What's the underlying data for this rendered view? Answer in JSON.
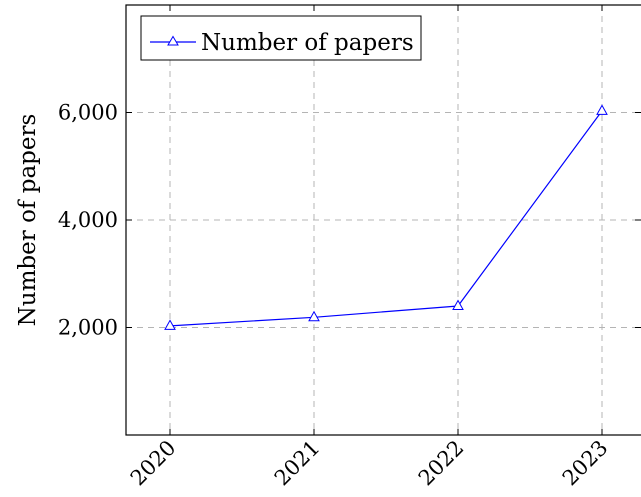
{
  "chart_data": {
    "type": "line",
    "ylabel": "Number of papers",
    "x": [
      "2020",
      "2021",
      "2022",
      "2023"
    ],
    "x_tick_labels": [
      "2020",
      "2021",
      "2022",
      "2023"
    ],
    "y_tick_values": [
      2000,
      4000,
      6000
    ],
    "y_tick_labels": [
      "2,000",
      "4,000",
      "6,000"
    ],
    "ylim": [
      0,
      8000
    ],
    "grid": true,
    "legend_position": "top-left",
    "series": [
      {
        "name": "Number of papers",
        "values": [
          2030,
          2190,
          2400,
          6030
        ],
        "color": "#0000ff",
        "marker": "triangle"
      }
    ]
  }
}
